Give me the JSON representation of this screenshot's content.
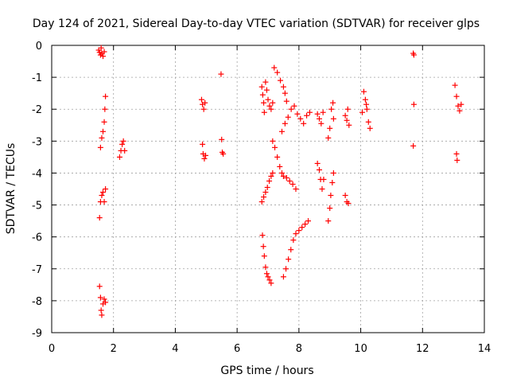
{
  "chart_data": {
    "type": "scatter",
    "title": "Day 124 of 2021, Sidereal Day-to-day VTEC variation (SDTVAR) for receiver glps",
    "xlabel": "GPS time / hours",
    "ylabel": "SDTVAR / TECUs",
    "xlim": [
      0,
      14
    ],
    "ylim": [
      -9,
      0
    ],
    "x_ticks": [
      "0",
      "2",
      "4",
      "6",
      "8",
      "10",
      "12",
      "14"
    ],
    "y_ticks": [
      "0",
      "-1",
      "-2",
      "-3",
      "-4",
      "-5",
      "-6",
      "-7",
      "-8",
      "-9"
    ],
    "grid": true,
    "marker": "+",
    "colors": {
      "points": "#ff0000",
      "grid": "#a0a0a0",
      "axes": "#000000"
    },
    "series": [
      {
        "name": "SDTVAR",
        "points": [
          [
            1.52,
            -0.15
          ],
          [
            1.55,
            -0.22
          ],
          [
            1.58,
            -0.3
          ],
          [
            1.62,
            -0.25
          ],
          [
            1.66,
            -0.34
          ],
          [
            1.7,
            -0.2
          ],
          [
            1.6,
            -0.08
          ],
          [
            1.58,
            -3.2
          ],
          [
            1.62,
            -2.9
          ],
          [
            1.66,
            -2.7
          ],
          [
            1.7,
            -2.4
          ],
          [
            1.72,
            -2.0
          ],
          [
            1.74,
            -1.6
          ],
          [
            1.55,
            -5.4
          ],
          [
            1.58,
            -4.9
          ],
          [
            1.62,
            -4.7
          ],
          [
            1.66,
            -4.6
          ],
          [
            1.7,
            -4.9
          ],
          [
            1.74,
            -4.5
          ],
          [
            1.55,
            -7.55
          ],
          [
            1.58,
            -7.9
          ],
          [
            1.6,
            -8.3
          ],
          [
            1.62,
            -8.45
          ],
          [
            1.66,
            -8.1
          ],
          [
            1.7,
            -7.95
          ],
          [
            1.74,
            -8.05
          ],
          [
            2.2,
            -3.5
          ],
          [
            2.24,
            -3.3
          ],
          [
            2.28,
            -3.1
          ],
          [
            2.32,
            -3.0
          ],
          [
            2.36,
            -3.3
          ],
          [
            4.85,
            -1.7
          ],
          [
            4.88,
            -1.85
          ],
          [
            4.92,
            -2.0
          ],
          [
            4.96,
            -1.8
          ],
          [
            4.88,
            -3.1
          ],
          [
            4.9,
            -3.4
          ],
          [
            4.94,
            -3.55
          ],
          [
            4.98,
            -3.45
          ],
          [
            5.48,
            -0.9
          ],
          [
            5.5,
            -2.95
          ],
          [
            5.52,
            -3.35
          ],
          [
            5.55,
            -3.4
          ],
          [
            6.8,
            -1.3
          ],
          [
            6.83,
            -1.55
          ],
          [
            6.86,
            -1.8
          ],
          [
            6.88,
            -2.1
          ],
          [
            6.92,
            -1.15
          ],
          [
            6.96,
            -1.4
          ],
          [
            7.0,
            -1.7
          ],
          [
            7.05,
            -1.9
          ],
          [
            7.1,
            -2.0
          ],
          [
            7.15,
            -1.8
          ],
          [
            6.8,
            -4.9
          ],
          [
            6.86,
            -4.75
          ],
          [
            6.92,
            -4.6
          ],
          [
            6.98,
            -4.45
          ],
          [
            7.04,
            -4.25
          ],
          [
            7.1,
            -4.1
          ],
          [
            7.15,
            -4.0
          ],
          [
            6.82,
            -5.95
          ],
          [
            6.85,
            -6.3
          ],
          [
            6.88,
            -6.6
          ],
          [
            6.92,
            -6.95
          ],
          [
            6.96,
            -7.15
          ],
          [
            7.0,
            -7.25
          ],
          [
            7.05,
            -7.35
          ],
          [
            7.1,
            -7.45
          ],
          [
            7.2,
            -0.7
          ],
          [
            7.3,
            -0.85
          ],
          [
            7.4,
            -1.1
          ],
          [
            7.5,
            -1.3
          ],
          [
            7.55,
            -1.5
          ],
          [
            7.6,
            -1.75
          ],
          [
            7.15,
            -3.0
          ],
          [
            7.22,
            -3.2
          ],
          [
            7.3,
            -3.5
          ],
          [
            7.38,
            -3.8
          ],
          [
            7.45,
            -4.0
          ],
          [
            7.5,
            -4.1
          ],
          [
            7.6,
            -4.15
          ],
          [
            7.7,
            -4.25
          ],
          [
            7.8,
            -4.35
          ],
          [
            7.9,
            -4.5
          ],
          [
            7.45,
            -2.7
          ],
          [
            7.55,
            -2.45
          ],
          [
            7.65,
            -2.25
          ],
          [
            7.75,
            -2.0
          ],
          [
            7.85,
            -1.9
          ],
          [
            7.95,
            -2.15
          ],
          [
            8.05,
            -2.3
          ],
          [
            8.15,
            -2.45
          ],
          [
            8.25,
            -2.2
          ],
          [
            8.35,
            -2.1
          ],
          [
            7.5,
            -7.25
          ],
          [
            7.58,
            -7.0
          ],
          [
            7.66,
            -6.7
          ],
          [
            7.74,
            -6.4
          ],
          [
            7.82,
            -6.1
          ],
          [
            7.9,
            -5.9
          ],
          [
            8.0,
            -5.8
          ],
          [
            8.1,
            -5.7
          ],
          [
            8.2,
            -5.6
          ],
          [
            8.3,
            -5.5
          ],
          [
            8.6,
            -2.15
          ],
          [
            8.66,
            -2.3
          ],
          [
            8.72,
            -2.45
          ],
          [
            8.78,
            -2.1
          ],
          [
            8.6,
            -3.7
          ],
          [
            8.66,
            -3.9
          ],
          [
            8.7,
            -4.2
          ],
          [
            8.75,
            -4.5
          ],
          [
            8.8,
            -4.2
          ],
          [
            8.95,
            -2.9
          ],
          [
            9.0,
            -2.6
          ],
          [
            9.05,
            -2.0
          ],
          [
            9.1,
            -1.8
          ],
          [
            9.12,
            -2.3
          ],
          [
            8.95,
            -5.5
          ],
          [
            9.0,
            -5.1
          ],
          [
            9.03,
            -4.7
          ],
          [
            9.08,
            -4.3
          ],
          [
            9.12,
            -4.0
          ],
          [
            9.5,
            -2.2
          ],
          [
            9.55,
            -2.35
          ],
          [
            9.58,
            -2.0
          ],
          [
            9.62,
            -2.5
          ],
          [
            9.5,
            -4.7
          ],
          [
            9.55,
            -4.9
          ],
          [
            9.6,
            -4.95
          ],
          [
            10.1,
            -1.45
          ],
          [
            10.15,
            -1.7
          ],
          [
            10.2,
            -2.0
          ],
          [
            10.25,
            -2.4
          ],
          [
            10.3,
            -2.6
          ],
          [
            10.05,
            -2.1
          ],
          [
            10.18,
            -1.85
          ],
          [
            11.7,
            -0.25
          ],
          [
            11.72,
            -0.3
          ],
          [
            11.72,
            -1.85
          ],
          [
            11.7,
            -3.15
          ],
          [
            13.05,
            -1.25
          ],
          [
            13.1,
            -1.6
          ],
          [
            13.15,
            -1.9
          ],
          [
            13.2,
            -2.05
          ],
          [
            13.25,
            -1.85
          ],
          [
            13.1,
            -3.4
          ],
          [
            13.12,
            -3.6
          ]
        ]
      }
    ]
  }
}
